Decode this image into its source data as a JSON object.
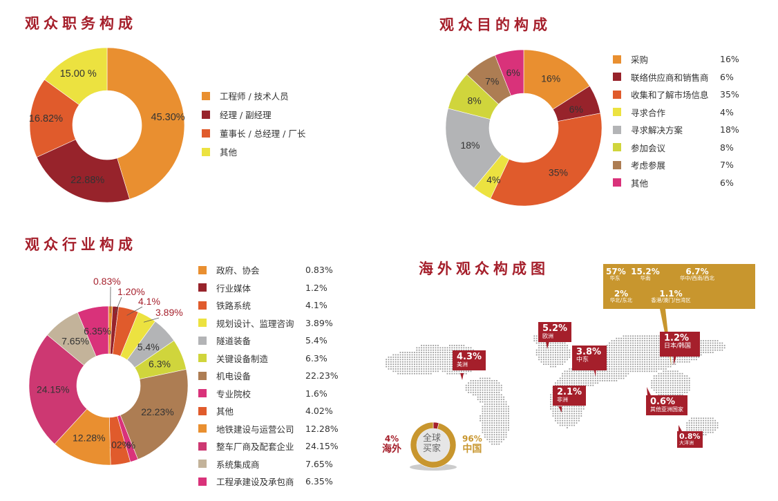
{
  "titles": {
    "position": "观众职务构成",
    "purpose": "观众目的构成",
    "industry": "观众行业构成",
    "overseas": "海外观众构成图"
  },
  "chart_data": [
    {
      "type": "pie",
      "title": "观众职务构成",
      "donut": true,
      "categories": [
        "工程师 / 技术人员",
        "经理 / 副经理",
        "董事长 / 总经理 / 厂长",
        "其他"
      ],
      "values": [
        45.3,
        22.88,
        16.82,
        15.0
      ],
      "labels": [
        "45.30%",
        "22.88%",
        "16.82%",
        "15.00 %"
      ],
      "colors": [
        "#e98f30",
        "#97232b",
        "#e05b2c",
        "#ece240"
      ],
      "legend_position": "right"
    },
    {
      "type": "pie",
      "title": "观众目的构成",
      "donut": true,
      "categories": [
        "采购",
        "联络供应商和销售商",
        "收集和了解市场信息",
        "寻求合作",
        "寻求解决方案",
        "参加会议",
        "考虑参展",
        "其他"
      ],
      "values": [
        16,
        6,
        35,
        4,
        18,
        8,
        7,
        6
      ],
      "labels": [
        "16%",
        "6%",
        "35%",
        "4%",
        "18%",
        "8%",
        "7%",
        "6%"
      ],
      "colors": [
        "#e98f30",
        "#97232b",
        "#e05b2c",
        "#ece240",
        "#b3b4b6",
        "#d0d53c",
        "#ad7d53",
        "#d9327a"
      ],
      "legend_position": "right"
    },
    {
      "type": "pie",
      "title": "观众行业构成",
      "donut": true,
      "categories": [
        "政府、协会",
        "行业媒体",
        "铁路系统",
        "规划设计、监理咨询",
        "隧道装备",
        "关键设备制造",
        "机电设备",
        "专业院校",
        "其他",
        "地铁建设与运营公司",
        "整车厂商及配套企业",
        "系统集成商",
        "工程承建设及承包商"
      ],
      "values": [
        0.83,
        1.2,
        4.1,
        3.89,
        5.4,
        6.3,
        22.23,
        1.6,
        4.02,
        12.28,
        24.15,
        7.65,
        6.35
      ],
      "labels": [
        "0.83%",
        "1.20%",
        "4.1%",
        "3.89%",
        "5.4%",
        "6.3%",
        "22.23%",
        "1.6%",
        "4.02%",
        "12.28%",
        "24.15%",
        "7.65%",
        "6.35%"
      ],
      "legend_values": [
        "0.83%",
        "1.2%",
        "4.1%",
        "3.89%",
        "5.4%",
        "6.3%",
        "22.23%",
        "1.6%",
        "4.02%",
        "12.28%",
        "24.15%",
        "7.65%",
        "6.35%"
      ],
      "colors": [
        "#e98f30",
        "#97232b",
        "#e05b2c",
        "#ece240",
        "#b3b4b6",
        "#d0d53c",
        "#ad7d53",
        "#d9327a",
        "#e05b2c",
        "#e98f30",
        "#cd3872",
        "#c3b39a",
        "#d9327a"
      ],
      "legend_position": "right"
    },
    {
      "type": "pie",
      "title": "全球买家",
      "donut": true,
      "categories": [
        "海外",
        "中国"
      ],
      "values": [
        4,
        96
      ],
      "labels": [
        "4%",
        "96%"
      ],
      "colors": [
        "#a51f2b",
        "#c8962e"
      ]
    }
  ],
  "global_buyers": {
    "center_text_1": "全球",
    "center_text_2": "买家",
    "overseas_pct": "4%",
    "overseas_label": "海外",
    "china_pct": "96%",
    "china_label": "中国"
  },
  "china_regions": [
    {
      "pct": "57%",
      "region": "华东"
    },
    {
      "pct": "15.2%",
      "region": "华南"
    },
    {
      "pct": "6.7%",
      "region": "华中/西南/西北"
    },
    {
      "pct": "2%",
      "region": "华北/东北"
    },
    {
      "pct": "1.1%",
      "region": "香港/澳门/台湾区"
    }
  ],
  "world_regions": [
    {
      "pct": "4.3%",
      "region": "美洲"
    },
    {
      "pct": "5.2%",
      "region": "欧洲"
    },
    {
      "pct": "3.8%",
      "region": "中东"
    },
    {
      "pct": "2.1%",
      "region": "非洲"
    },
    {
      "pct": "1.2%",
      "region": "日本/韩国"
    },
    {
      "pct": "0.6%",
      "region": "其他亚洲国家"
    },
    {
      "pct": "0.8%",
      "region": "大洋洲"
    }
  ]
}
